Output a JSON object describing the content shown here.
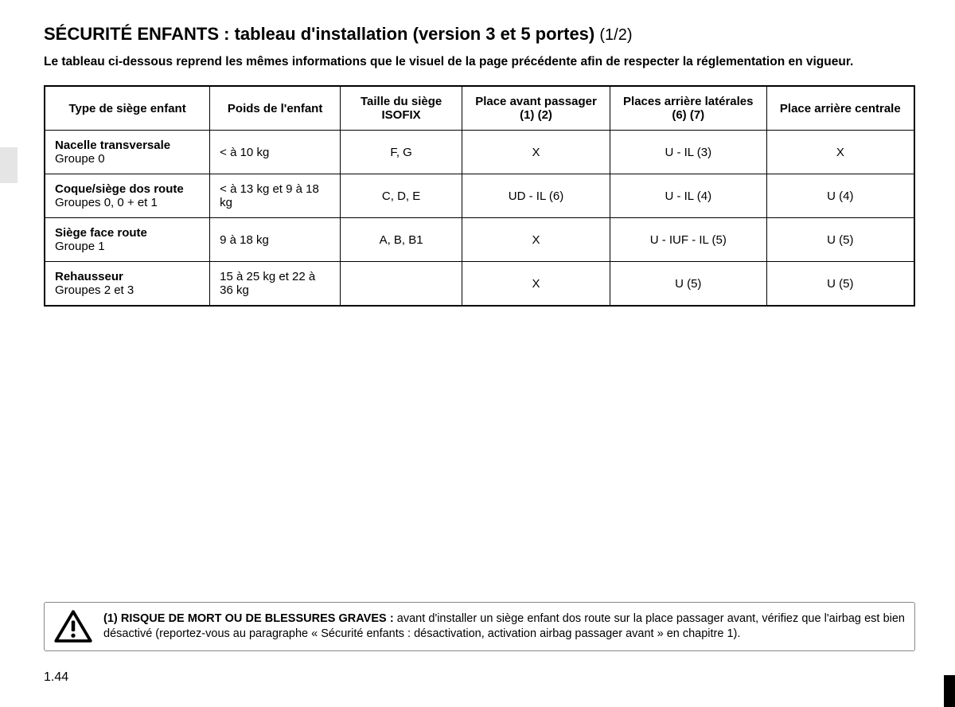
{
  "colors": {
    "background": "#ffffff",
    "text": "#000000",
    "side_tab": "#e5e5e5",
    "table_border": "#000000",
    "warning_border": "#888888",
    "corner_block": "#000000"
  },
  "title": {
    "main": "SÉCURITÉ ENFANTS : tableau d'installation (version 3 et 5 portes)",
    "suffix": "(1/2)"
  },
  "intro": "Le tableau ci-dessous reprend les mêmes informations que le visuel de la page précédente afin de respecter la réglementation en vigueur.",
  "table": {
    "columns": [
      "Type de siège enfant",
      "Poids de l'enfant",
      "Taille du siège ISOFIX",
      "Place avant passager (1) (2)",
      "Places arrière latérales (6) (7)",
      "Place arrière centrale"
    ],
    "col_widths_pct": [
      19,
      15,
      14,
      17,
      18,
      17
    ],
    "rows": [
      {
        "label_bold": "Nacelle transversale",
        "label_sub": "Groupe 0",
        "weight": "< à 10 kg",
        "isofix": "F, G",
        "front": "X",
        "rear_side": "U - IL (3)",
        "rear_center": "X"
      },
      {
        "label_bold": "Coque/siège dos route",
        "label_sub": "Groupes 0, 0 + et 1",
        "label_justify": true,
        "weight": "< à 13 kg et 9 à 18 kg",
        "weight_justify": true,
        "isofix": "C, D, E",
        "front": "UD - IL (6)",
        "rear_side": "U - IL (4)",
        "rear_center": "U (4)"
      },
      {
        "label_bold": "Siège face route",
        "label_sub": "Groupe 1",
        "weight": "9 à 18 kg",
        "isofix": "A, B, B1",
        "front": "X",
        "rear_side": "U - IUF - IL (5)",
        "rear_center": "U (5)"
      },
      {
        "label_bold": "Rehausseur",
        "label_sub": "Groupes 2 et 3",
        "weight": "15 à 25 kg et 22 à 36 kg",
        "weight_justify": true,
        "isofix": "",
        "front": "X",
        "rear_side": "U (5)",
        "rear_center": "U (5)"
      }
    ]
  },
  "warning": {
    "bold": "(1) RISQUE DE MORT OU DE BLESSURES GRAVES :",
    "text": " avant d'installer un siège enfant dos route sur la place passager avant, vérifiez que l'airbag est bien désactivé (reportez-vous au paragraphe « Sécurité enfants : désactivation, activation airbag passager avant » en chapitre 1)."
  },
  "page_number": "1.44"
}
